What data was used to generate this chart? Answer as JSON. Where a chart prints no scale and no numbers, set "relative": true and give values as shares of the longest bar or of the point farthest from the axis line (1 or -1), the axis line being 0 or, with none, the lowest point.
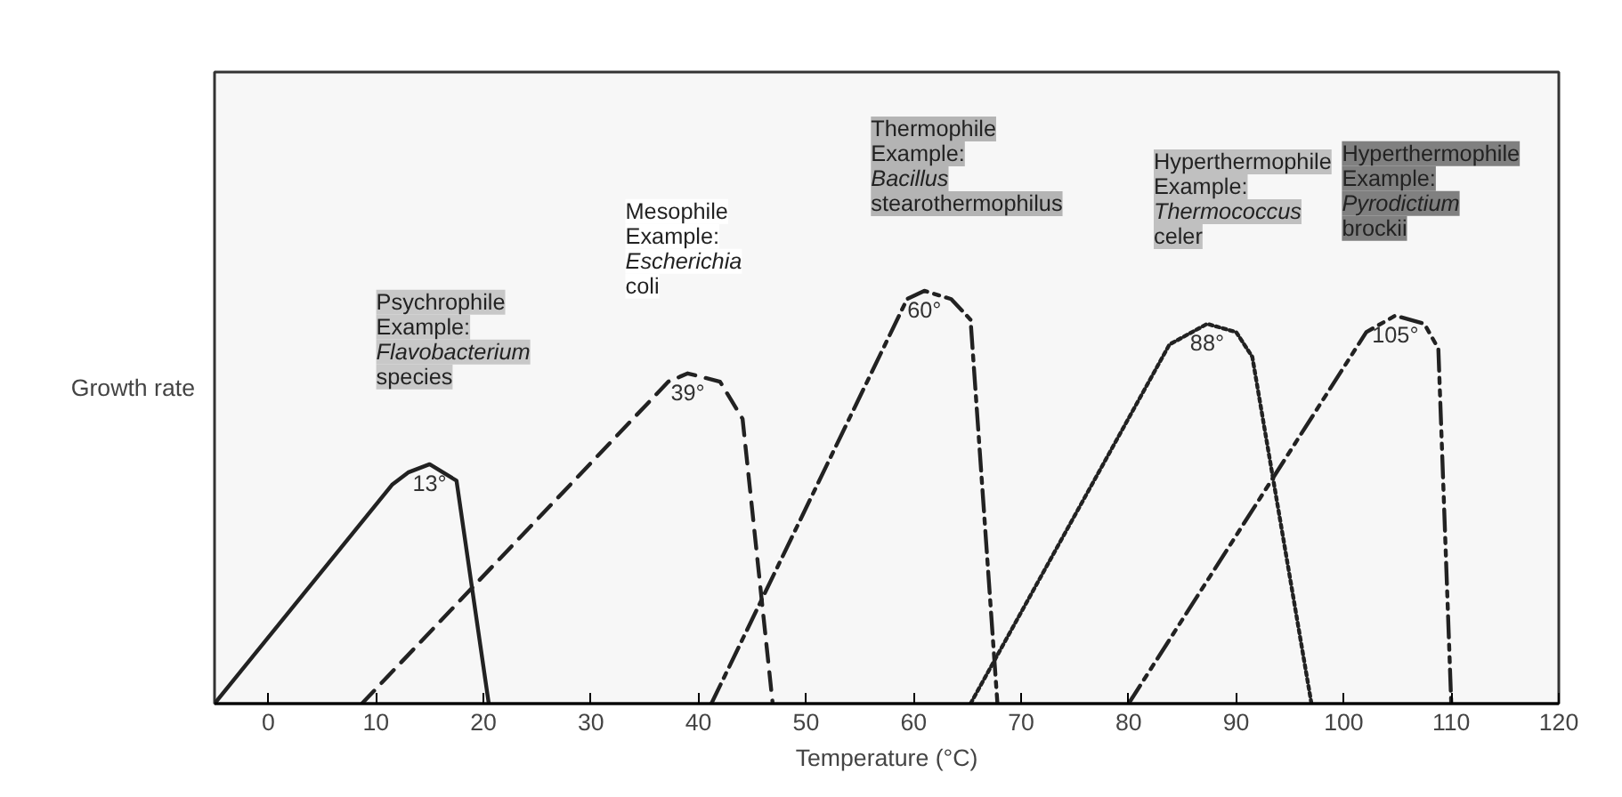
{
  "chart_data": {
    "type": "line",
    "xlabel": "Temperature (°C)",
    "ylabel": "Growth rate",
    "relative": true,
    "xlim": [
      -5,
      120
    ],
    "xticks": [
      0,
      10,
      20,
      30,
      40,
      50,
      60,
      70,
      80,
      90,
      100,
      110,
      120
    ],
    "tick_labels": "x",
    "grid": false,
    "marker": "none",
    "series": [
      {
        "color": "#222222",
        "line_style": "solid",
        "x": [
          -5,
          11.5,
          13,
          15,
          17.5,
          20.5
        ],
        "values": [
          0,
          0.53,
          0.56,
          0.58,
          0.54,
          0
        ]
      },
      {
        "color": "#222222",
        "line_style": "dashed",
        "x": [
          8.7,
          37.2,
          39,
          42,
          44.1,
          46.9
        ],
        "values": [
          0,
          0.78,
          0.8,
          0.78,
          0.69,
          0
        ]
      },
      {
        "color": "#222222",
        "line_style": "dashdot",
        "x": [
          41.2,
          59.4,
          61,
          63.5,
          65.3,
          67.8
        ],
        "values": [
          0,
          0.98,
          1.0,
          0.98,
          0.93,
          0
        ]
      },
      {
        "color": "#222222",
        "line_style": "dotted",
        "x": [
          65.3,
          83.8,
          87.3,
          90,
          91.5,
          97
        ],
        "values": [
          0,
          0.87,
          0.92,
          0.9,
          0.84,
          0
        ]
      },
      {
        "color": "#222222",
        "line_style": "dashdotdot",
        "x": [
          80,
          102.1,
          104.8,
          107.5,
          108.8,
          110
        ],
        "values": [
          0,
          0.9,
          0.94,
          0.92,
          0.86,
          0
        ]
      }
    ],
    "annotations": [
      {
        "text": "13°",
        "x": 15,
        "y": 0.58
      },
      {
        "text": "39°",
        "x": 39,
        "y": 0.8
      },
      {
        "text": "60°",
        "x": 61,
        "y": 1.0
      },
      {
        "text": "88°",
        "x": 87.3,
        "y": 0.92
      },
      {
        "text": "105°",
        "x": 104.8,
        "y": 0.94
      },
      "Psychrophile\nExample:\nFlavobacterium\nspecies",
      "Mesophile\nExample:\nEscherichia\ncoli",
      "Thermophile\nExample:\nBacillus\nstearothermophilus",
      "Hyperthermophile\nExample:\nThermococcus\nceler",
      "Hyperthermophile\nExample:\nPyrodictium\nbrockii"
    ]
  }
}
